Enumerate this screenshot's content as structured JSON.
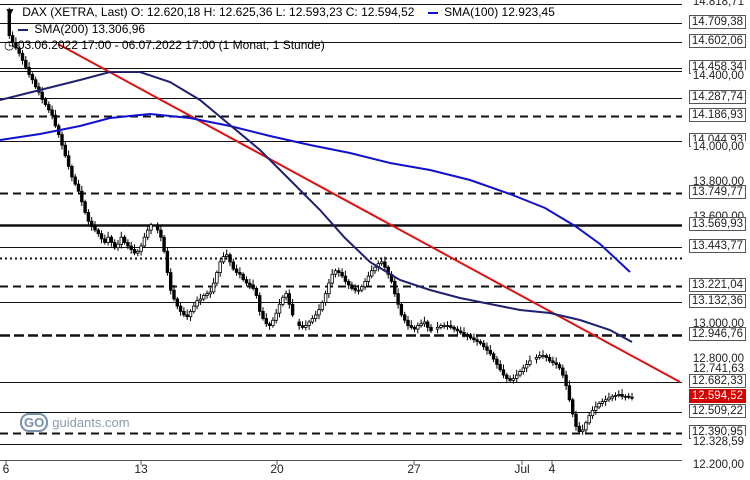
{
  "header": {
    "line1": "DAX (XETRA, Last)  O: 12.620,18  H: 12.625,36  L: 12.593,23  C: 12.594,52",
    "sma100": "SMA(100)  12.923,45",
    "sma200": "SMA(200)  13.306,96",
    "range": "03.06.2022 17:00 - 06.07.2022 17:00  (1 Monat, 1 Stunde)"
  },
  "watermark": {
    "mark": "GO",
    "text": "guidants.com"
  },
  "colors": {
    "sma100": "#1010d0",
    "sma200": "#202070",
    "trend": "#e01010",
    "last": "#d40000"
  },
  "chart_data": {
    "type": "candlestick",
    "ylim": [
      12200,
      14818.71
    ],
    "x_ticks": [
      "6",
      "13",
      "20",
      "27",
      "Jul",
      "4"
    ],
    "y_ticks": [
      "14.818,71",
      "14.709,38",
      "14.602,06",
      "14.458,34",
      "14.400,00",
      "14.287,74",
      "14.186,93",
      "14.044,93",
      "14.000,00",
      "13.800,00",
      "13.749,77",
      "13.600,00",
      "13.569,93",
      "13.443,77",
      "13.221,04",
      "13.132,36",
      "13.000,00",
      "12.946,76",
      "12.800,00",
      "12.741,63",
      "12.682,33",
      "12.594,52",
      "12.509,22",
      "12.390,95",
      "12.328,59",
      "12.200,00"
    ],
    "last_value": "12.594,52",
    "levels": [
      {
        "value": 14818.71,
        "style": "solid"
      },
      {
        "value": 14709.38,
        "style": "solid"
      },
      {
        "value": 14602.06,
        "style": "solid"
      },
      {
        "value": 14458.34,
        "style": "solid"
      },
      {
        "value": 14440.0,
        "style": "solid"
      },
      {
        "value": 14287.74,
        "style": "solid"
      },
      {
        "value": 14186.93,
        "style": "dashed"
      },
      {
        "value": 14044.93,
        "style": "solid"
      },
      {
        "value": 13749.77,
        "style": "dashed"
      },
      {
        "value": 13569.93,
        "style": "thick"
      },
      {
        "value": 13443.77,
        "style": "solid"
      },
      {
        "value": 13380.0,
        "style": "dotted"
      },
      {
        "value": 13221.04,
        "style": "dashed"
      },
      {
        "value": 13132.36,
        "style": "solid"
      },
      {
        "value": 12946.76,
        "style": "thick-dashed"
      },
      {
        "value": 12682.33,
        "style": "solid"
      },
      {
        "value": 12509.22,
        "style": "solid"
      },
      {
        "value": 12390.95,
        "style": "dashed"
      },
      {
        "value": 12328.59,
        "style": "solid"
      }
    ],
    "series": [
      {
        "name": "DAX (XETRA, Last)",
        "values": [
          14780,
          14640,
          14600,
          14570,
          14540,
          14500,
          14460,
          14420,
          14390,
          14350,
          14320,
          14280,
          14250,
          14220,
          14190,
          14130,
          14080,
          14020,
          13960,
          13900,
          13840,
          13800,
          13760,
          13700,
          13640,
          13590,
          13560,
          13540,
          13520,
          13490,
          13470,
          13500,
          13470,
          13440,
          13460,
          13500,
          13470,
          13450,
          13430,
          13410,
          13420,
          13450,
          13500,
          13540,
          13570,
          13560,
          13540,
          13500,
          13420,
          13300,
          13200,
          13150,
          13110,
          13080,
          13060,
          13050,
          13080,
          13110,
          13140,
          13150,
          13170,
          13180,
          13190,
          13240,
          13300,
          13360,
          13390,
          13400,
          13360,
          13320,
          13300,
          13290,
          13260,
          13240,
          13230,
          13210,
          13170,
          13080,
          13040,
          13010,
          13000,
          13030,
          13070,
          13120,
          13160,
          13180,
          13120,
          13060,
          13020,
          13000,
          12990,
          13000,
          13020,
          13040,
          13060,
          13090,
          13130,
          13180,
          13240,
          13290,
          13310,
          13300,
          13280,
          13250,
          13230,
          13210,
          13200,
          13200,
          13220,
          13250,
          13280,
          13310,
          13330,
          13350,
          13360,
          13330,
          13290,
          13250,
          13180,
          13120,
          13060,
          13030,
          13000,
          12990,
          12980,
          13000,
          13010,
          13020,
          12990,
          12970,
          12980,
          12990,
          13000,
          13000,
          13000,
          12990,
          12980,
          12970,
          12960,
          12950,
          12940,
          12930,
          12920,
          12910,
          12900,
          12880,
          12860,
          12840,
          12810,
          12780,
          12750,
          12720,
          12700,
          12690,
          12700,
          12720,
          12740,
          12760,
          12780,
          12800,
          12810,
          12820,
          12830,
          12830,
          12820,
          12800,
          12790,
          12780,
          12760,
          12720,
          12660,
          12580,
          12500,
          12430,
          12400,
          12410,
          12450,
          12490,
          12520,
          12540,
          12560,
          12570,
          12580,
          12590,
          12600,
          12605,
          12610,
          12600,
          12600,
          12595,
          12594.52
        ]
      },
      {
        "name": "SMA(100)",
        "values": [
          12923.45
        ]
      },
      {
        "name": "SMA(200)",
        "values": [
          13306.96
        ]
      }
    ]
  }
}
